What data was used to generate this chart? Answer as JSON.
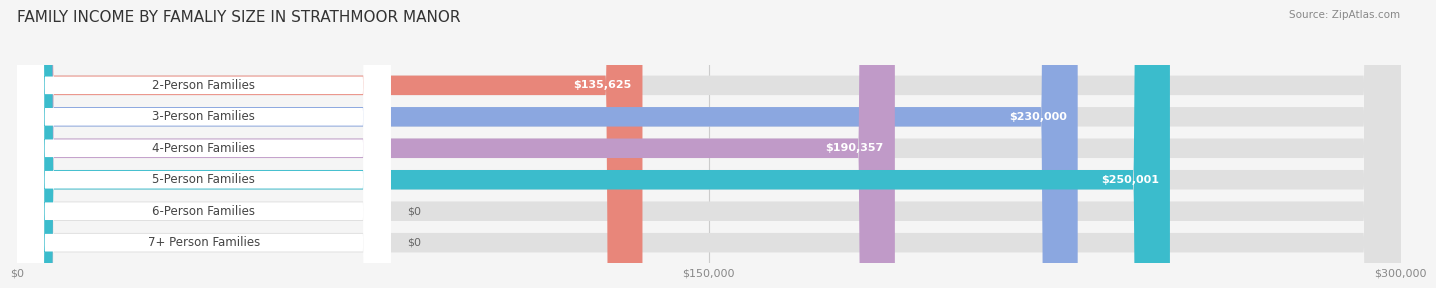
{
  "title": "FAMILY INCOME BY FAMALIY SIZE IN STRATHMOOR MANOR",
  "source": "Source: ZipAtlas.com",
  "categories": [
    "2-Person Families",
    "3-Person Families",
    "4-Person Families",
    "5-Person Families",
    "6-Person Families",
    "7+ Person Families"
  ],
  "values": [
    135625,
    230000,
    190357,
    250001,
    0,
    0
  ],
  "bar_colors": [
    "#E8867A",
    "#8BA7E0",
    "#C09AC8",
    "#3BBCCC",
    "#B8C0E8",
    "#F0A0B8"
  ],
  "value_labels": [
    "$135,625",
    "$230,000",
    "$190,357",
    "$250,001",
    "$0",
    "$0"
  ],
  "xlim": [
    0,
    300000
  ],
  "xticks": [
    0,
    150000,
    300000
  ],
  "xtick_labels": [
    "$0",
    "$150,000",
    "$300,000"
  ],
  "background_color": "#F5F5F5",
  "bar_background_color": "#E0E0E0",
  "title_fontsize": 11,
  "label_fontsize": 8.5,
  "value_fontsize": 8,
  "bar_height": 0.62,
  "fig_width": 14.06,
  "fig_height": 3.05
}
